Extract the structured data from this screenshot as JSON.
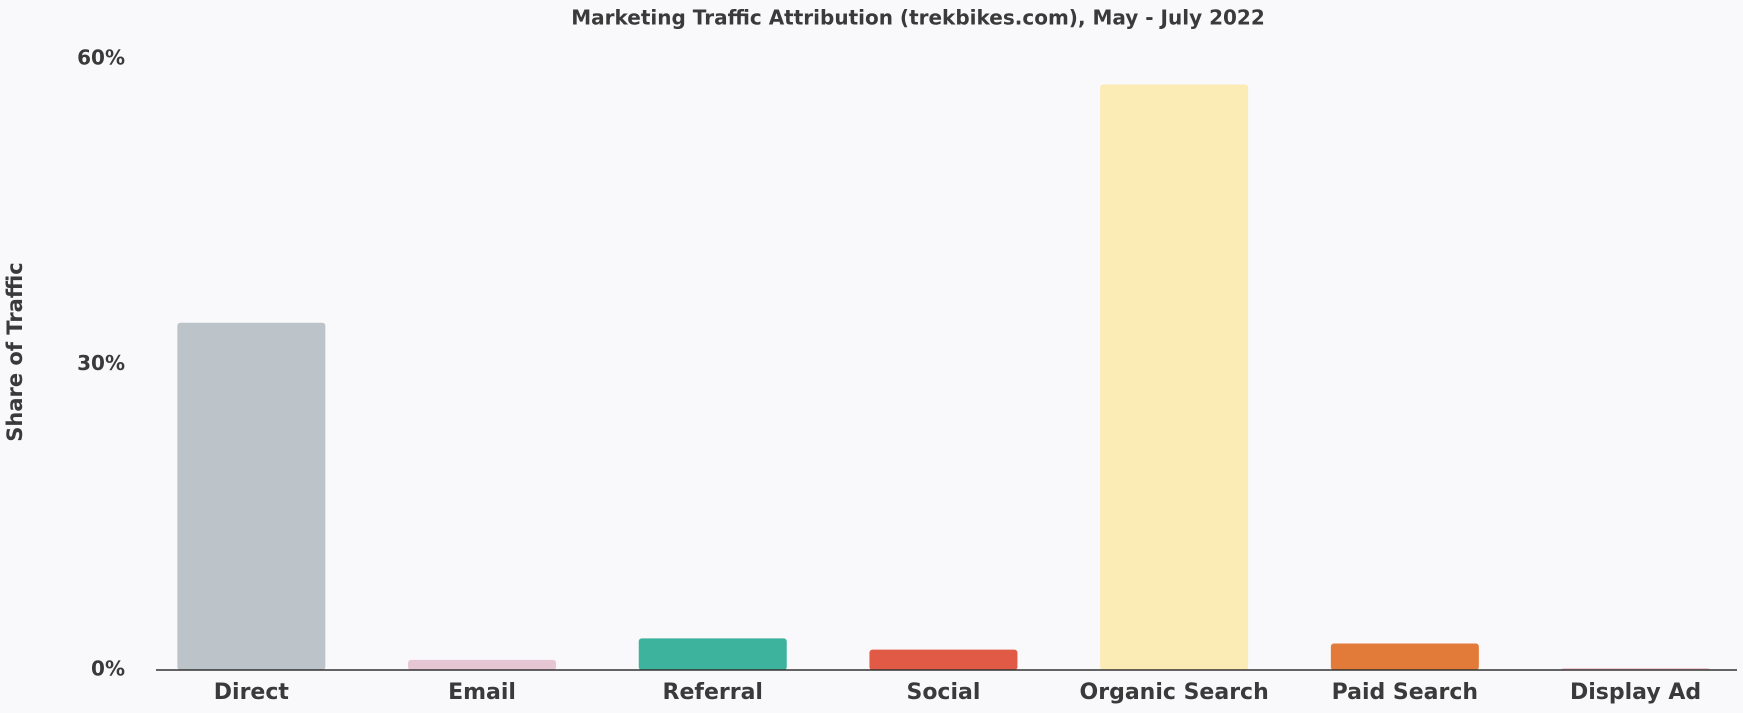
{
  "chart_data": {
    "type": "bar",
    "title": "Marketing Traffic Attribution (trekbikes.com), May - July 2022",
    "y_label": "Share of Traffic",
    "categories": [
      "Direct",
      "Email",
      "Referral",
      "Social",
      "Organic Search",
      "Paid Search",
      "Display Ad"
    ],
    "values": [
      34.1,
      1.0,
      3.1,
      2.0,
      57.5,
      2.6,
      0.2
    ],
    "colors": [
      "#bcc3c9",
      "#e6c6d2",
      "#3db29c",
      "#e05a45",
      "#fbecb5",
      "#e27a39",
      "#f0c8d2"
    ],
    "ylim": [
      0,
      60
    ],
    "yticks": [
      {
        "value": 0,
        "label": "0%"
      },
      {
        "value": 30,
        "label": "30%"
      },
      {
        "value": 60,
        "label": "60%"
      }
    ],
    "grid": false
  }
}
